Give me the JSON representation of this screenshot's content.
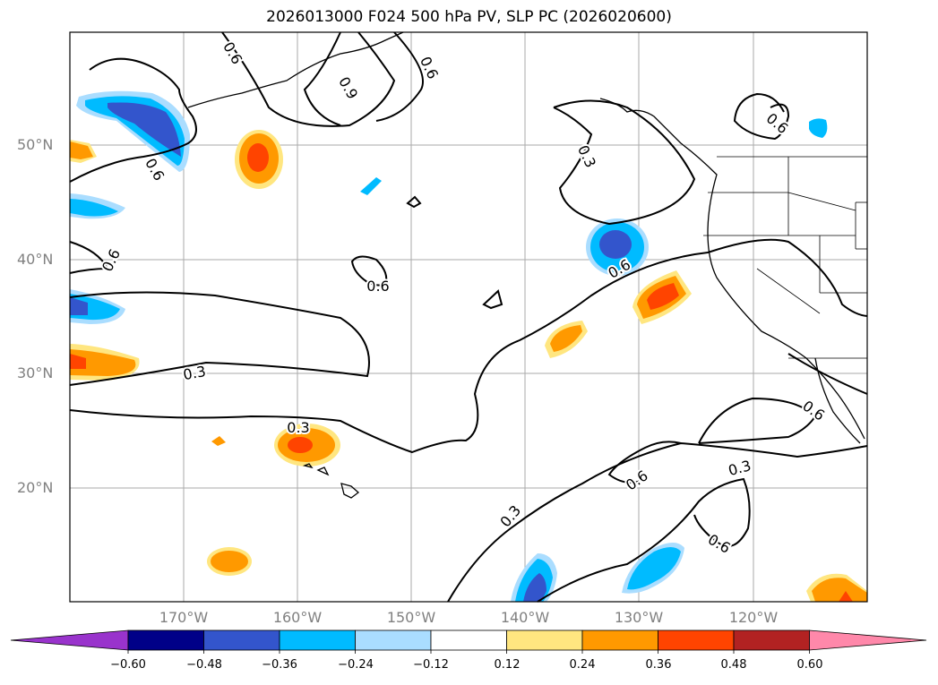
{
  "title": "2026013000 F024 500 hPa PV, SLP PC (2026020600)",
  "lat_labels": [
    "50°N",
    "40°N",
    "30°N",
    "20°N"
  ],
  "lon_labels": [
    "170°W",
    "160°W",
    "150°W",
    "140°W",
    "130°W",
    "120°W"
  ],
  "contour_labels": [
    "0.6",
    "0.9",
    "0.6",
    "0.6",
    "0.3",
    "0.6",
    "0.6",
    "0.6",
    "0.6",
    "0.3",
    "0.3",
    "0.6",
    "0.3",
    "0.3",
    "0.6",
    "0.6"
  ],
  "colorbar": {
    "tick_labels": [
      "−0.60",
      "−0.48",
      "−0.36",
      "−0.24",
      "−0.12",
      "0.12",
      "0.24",
      "0.36",
      "0.48",
      "0.60"
    ],
    "colors": [
      "#9933cc",
      "#000088",
      "#3355cc",
      "#00bbff",
      "#aaddff",
      "#ffffff",
      "#ffe680",
      "#ff9900",
      "#ff4400",
      "#b22222",
      "#ff88aa"
    ]
  },
  "colors": {
    "neg_strong": "#3355cc",
    "neg_mid": "#00bbff",
    "neg_weak": "#aaddff",
    "pos_weak": "#ffe680",
    "pos_mid": "#ff9900",
    "pos_strong": "#ff4400"
  }
}
